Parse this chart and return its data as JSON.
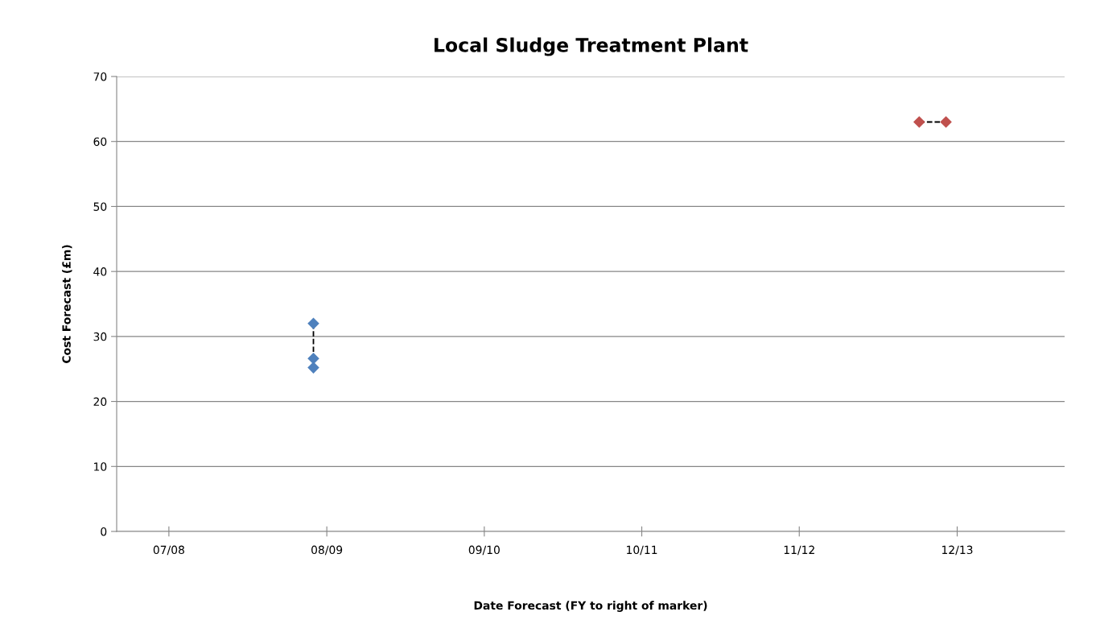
{
  "chart_data": {
    "type": "scatter",
    "title": "Local Sludge Treatment Plant",
    "xlabel": "Date Forecast (FY to right of marker)",
    "ylabel": "Cost Forecast (£m)",
    "series": [
      {
        "color": "#4f81bd",
        "marker": "diamond",
        "x": [
          "2008-03-01",
          "2008-03-01",
          "2008-03-01"
        ],
        "values": [
          32,
          26.6,
          25.2
        ]
      },
      {
        "color": "#c0504d",
        "marker": "diamond",
        "x": [
          "2012-01-04",
          "2012-03-06"
        ],
        "values": [
          63,
          63
        ]
      },
      {
        "type": "line",
        "color": "#000000",
        "line_style": "dashed",
        "marker": "none",
        "x": [
          "2008-03-01",
          "2008-03-01",
          "2008-03-01"
        ],
        "values": [
          32,
          26.6,
          25.2
        ]
      },
      {
        "type": "line",
        "color": "#000000",
        "line_style": "dashed",
        "marker": "none",
        "x": [
          "2012-01-04",
          "2012-03-06"
        ],
        "values": [
          63,
          63
        ]
      }
    ],
    "xlim": [
      "2006-12-01",
      "2012-12-06"
    ],
    "xticks": [
      {
        "value": "2007-04-01",
        "label": "07/08"
      },
      {
        "value": "2008-04-01",
        "label": "08/09"
      },
      {
        "value": "2009-04-01",
        "label": "09/10"
      },
      {
        "value": "2010-04-01",
        "label": "10/11"
      },
      {
        "value": "2011-04-01",
        "label": "11/12"
      },
      {
        "value": "2012-04-01",
        "label": "12/13"
      }
    ],
    "ylim": [
      0,
      70
    ],
    "yticks": [
      0,
      10,
      20,
      30,
      40,
      50,
      60,
      70
    ],
    "grid": "y",
    "legend": false
  }
}
